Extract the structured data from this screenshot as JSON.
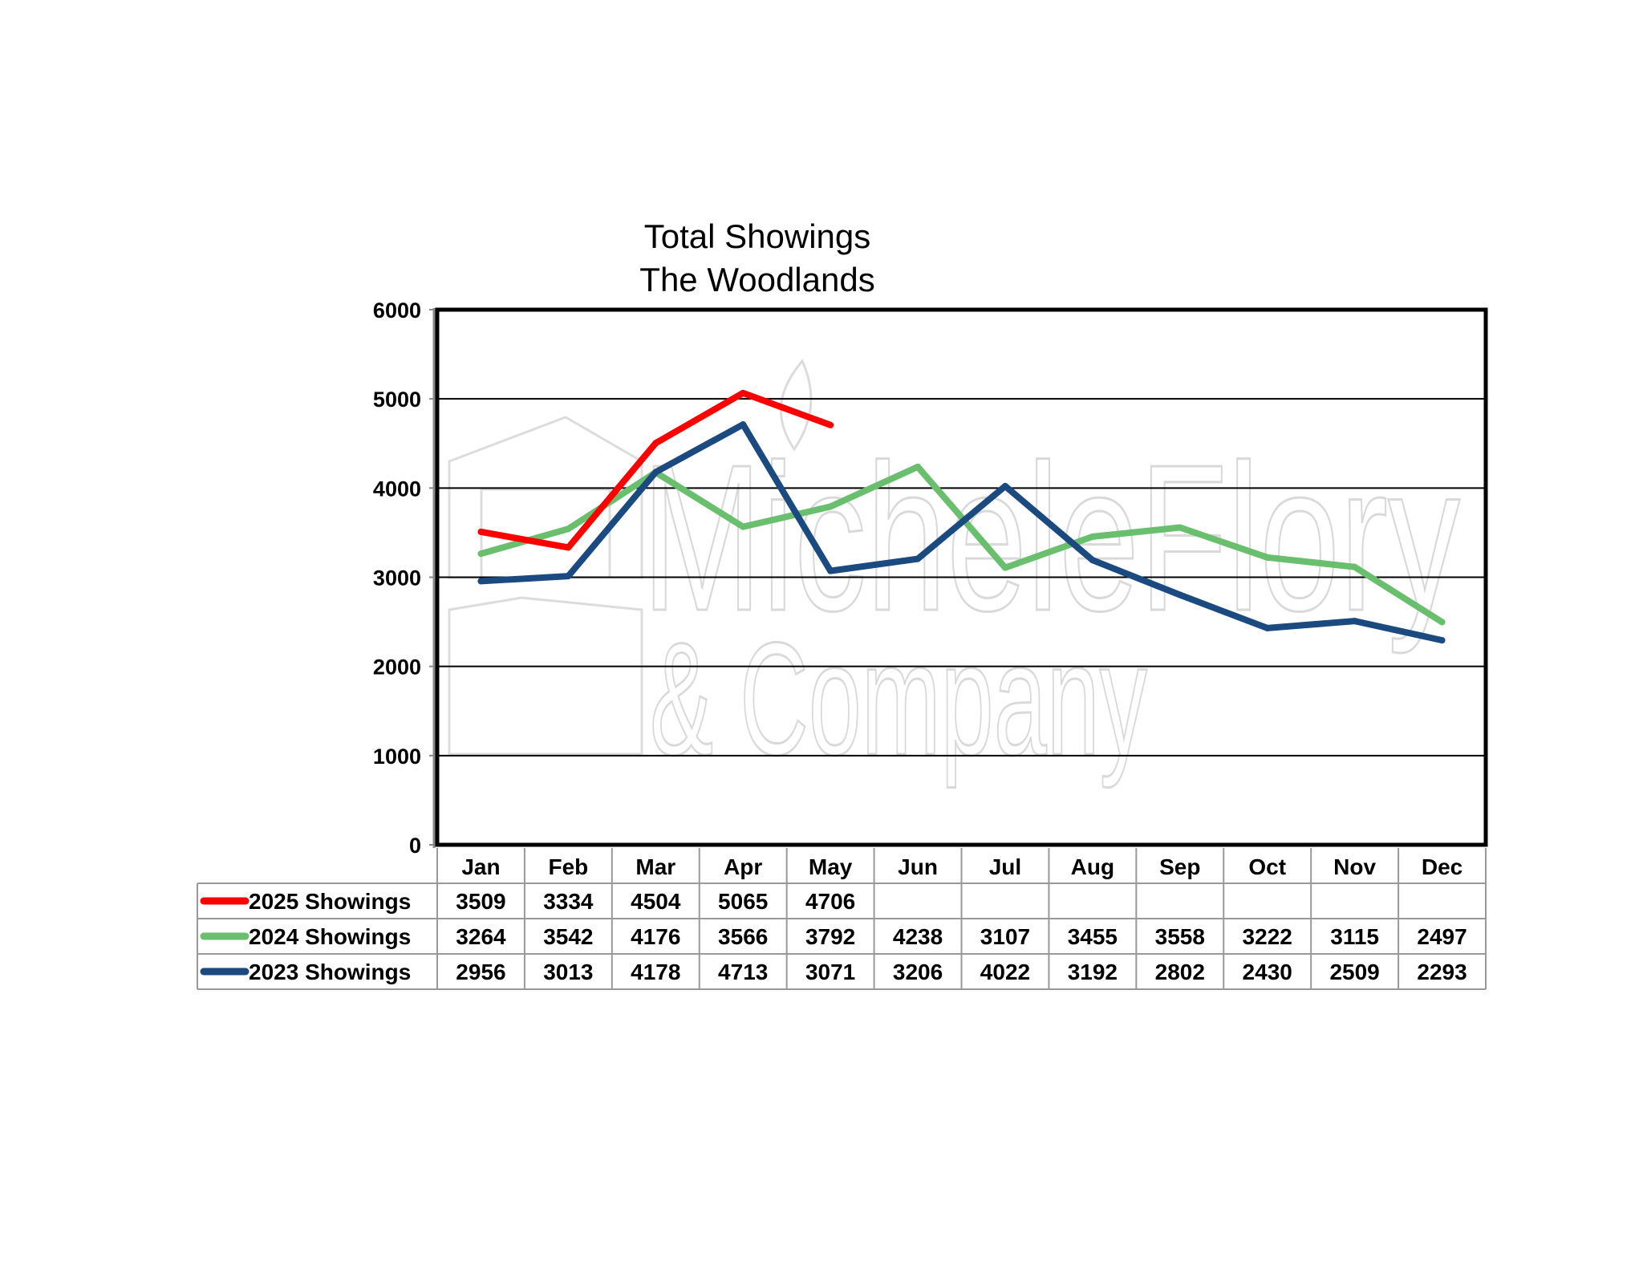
{
  "chart_data": {
    "type": "line",
    "title": [
      "Total Showings",
      "The Woodlands"
    ],
    "xlabel": "",
    "ylabel": "",
    "ylim": [
      0,
      6000
    ],
    "yticks": [
      0,
      1000,
      2000,
      3000,
      4000,
      5000,
      6000
    ],
    "grid": true,
    "legend": "data-table-below",
    "categories": [
      "Jan",
      "Feb",
      "Mar",
      "Apr",
      "May",
      "Jun",
      "Jul",
      "Aug",
      "Sep",
      "Oct",
      "Nov",
      "Dec"
    ],
    "series": [
      {
        "name": "2025 Showings",
        "color": "#ff0000",
        "values": [
          3509,
          3334,
          4504,
          5065,
          4706,
          null,
          null,
          null,
          null,
          null,
          null,
          null
        ]
      },
      {
        "name": "2024 Showings",
        "color": "#6abf6e",
        "values": [
          3264,
          3542,
          4176,
          3566,
          3792,
          4238,
          3107,
          3455,
          3558,
          3222,
          3115,
          2497
        ]
      },
      {
        "name": "2023 Showings",
        "color": "#1a4a80",
        "values": [
          2956,
          3013,
          4178,
          4713,
          3071,
          3206,
          4022,
          3192,
          2802,
          2430,
          2509,
          2293
        ]
      }
    ]
  },
  "watermark": {
    "line1": "MicheleFlory",
    "line2": "& Company"
  }
}
